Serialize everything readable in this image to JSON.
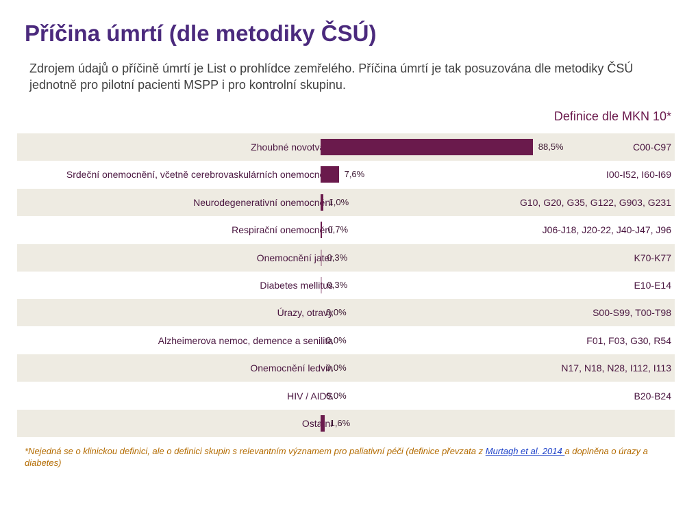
{
  "title": "Příčina úmrtí (dle metodiky ČSÚ)",
  "subtitle": "Zdrojem údajů o příčině úmrtí je List o prohlídce zemřelého. Příčina úmrtí je tak posuzována dle metodiky ČSÚ jednotně pro pilotní pacienti MSPP i pro kontrolní skupinu.",
  "definitions_header": "Definice dle MKN 10*",
  "footnote": {
    "before": "*Nejedná se o klinickou definici, ale o definici skupin s relevantním významem pro paliativní péči (definice převzata z ",
    "link": "Murtagh et al. 2014 ",
    "after": "a doplněna o úrazy a diabetes)"
  },
  "colors": {
    "bar": "#6a1a4c",
    "row_shade": "#eeebe2",
    "title": "#4b2a7d"
  },
  "chart_data": {
    "type": "bar",
    "orientation": "horizontal",
    "xlim": [
      0,
      100
    ],
    "categories": [
      "Zhoubné novotvary",
      "Srdeční onemocnění, včetně cerebrovaskulárních onemocnění",
      "Neurodegenerativní onemocnění",
      "Respirační onemocnění",
      "Onemocnění jater",
      "Diabetes mellitus",
      "Úrazy, otravy",
      "Alzheimerova nemoc, demence a senilita",
      "Onemocnění ledvin",
      "HIV / AIDS",
      "Ostatní"
    ],
    "values": [
      88.5,
      7.6,
      1.0,
      0.7,
      0.3,
      0.3,
      0.0,
      0.0,
      0.0,
      0.0,
      1.6
    ],
    "value_labels": [
      "88,5%",
      "7,6%",
      "1,0%",
      "0,7%",
      "0,3%",
      "0,3%",
      "0,0%",
      "0,0%",
      "0,0%",
      "0,0%",
      "1,6%"
    ],
    "definitions": [
      "C00-C97",
      "I00-I52, I60-I69",
      "G10, G20, G35, G122, G903, G231",
      "J06-J18, J20-22, J40-J47, J96",
      "K70-K77",
      "E10-E14",
      "S00-S99, T00-T98",
      "F01, F03, G30, R54",
      "N17, N18, N28, I112, I113",
      "B20-B24",
      ""
    ]
  }
}
